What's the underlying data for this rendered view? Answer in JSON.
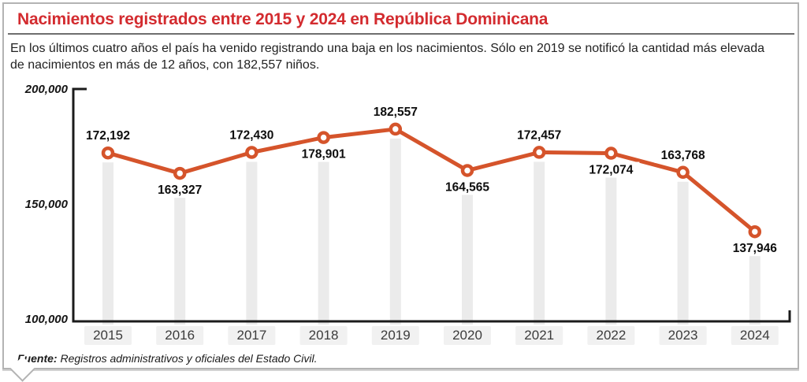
{
  "header": {
    "title": "Nacimientos registrados entre 2015 y 2024 en República Dominicana",
    "subtitle": "En los últimos cuatro años el país ha venido registrando una baja en los nacimientos. Sólo en 2019 se notificó la cantidad más elevada de nacimientos en más de 12 años, con 182,557 niños."
  },
  "footer": {
    "source_label": "Fuente:",
    "source_text": "Registros administrativos y oficiales del Estado Civil."
  },
  "colors": {
    "title_red": "#d32b2f",
    "line_orange": "#d5542b",
    "axis_black": "#1b1b1b",
    "column_gray": "#ebebeb",
    "year_box_gray": "#f1f1f1",
    "border_gray": "#b3b3b3"
  },
  "chart_data": {
    "type": "line",
    "title": "Nacimientos registrados entre 2015 y 2024 en República Dominicana",
    "xlabel": "",
    "ylabel": "",
    "categories": [
      "2015",
      "2016",
      "2017",
      "2018",
      "2019",
      "2020",
      "2021",
      "2022",
      "2023",
      "2024"
    ],
    "values": [
      172192,
      163327,
      172430,
      178901,
      182557,
      164565,
      172457,
      172074,
      163768,
      137946
    ],
    "labels": [
      "172,192",
      "163,327",
      "172,430",
      "178,901",
      "182,557",
      "164,565",
      "172,457",
      "172,074",
      "163,768",
      "137,946"
    ],
    "label_positions": [
      "above",
      "below",
      "above",
      "below",
      "above",
      "below",
      "above",
      "below",
      "above",
      "below"
    ],
    "yticks": [
      {
        "label": "200,000",
        "value": 200000
      },
      {
        "label": "150,000",
        "value": 150000
      },
      {
        "label": "100,000",
        "value": 100000
      }
    ],
    "ylim": [
      100000,
      200000
    ],
    "grid": false,
    "legend": "none",
    "marker": "open-circle",
    "column_highlights": true
  }
}
